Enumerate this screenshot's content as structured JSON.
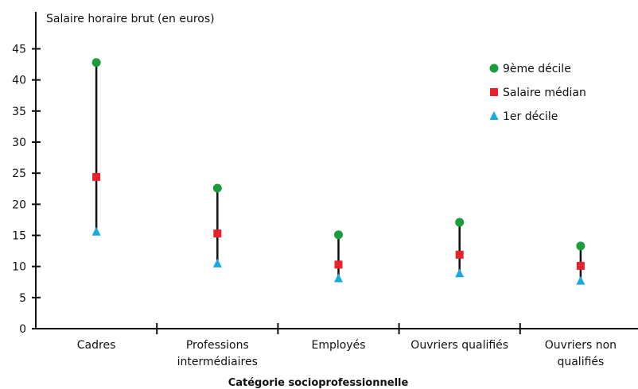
{
  "chart_data": {
    "type": "scatter",
    "title": "",
    "ylabel": "Salaire horaire brut (en euros)",
    "xlabel": "Catégorie socioprofessionnelle",
    "ylim": [
      0,
      45
    ],
    "yticks": [
      0,
      5,
      10,
      15,
      20,
      25,
      30,
      35,
      40,
      45
    ],
    "grid": false,
    "legend_position": "top-right",
    "categories": [
      [
        "Cadres"
      ],
      [
        "Professions",
        "intermédiaires"
      ],
      [
        "Employés"
      ],
      [
        "Ouvriers qualifiés"
      ],
      [
        "Ouvriers non",
        "qualifiés"
      ]
    ],
    "series": [
      {
        "name": "9ème décile",
        "marker": "circle",
        "color": "#1a9e3c",
        "values": [
          42.8,
          22.6,
          15.1,
          17.1,
          13.3
        ]
      },
      {
        "name": "Salaire médian",
        "marker": "square",
        "color": "#e8222a",
        "values": [
          24.4,
          15.3,
          10.3,
          11.9,
          10.1
        ]
      },
      {
        "name": "1er décile",
        "marker": "triangle",
        "color": "#19a8e0",
        "values": [
          15.6,
          10.5,
          8.1,
          8.9,
          7.7
        ]
      }
    ],
    "range_line_color": "#111111"
  }
}
